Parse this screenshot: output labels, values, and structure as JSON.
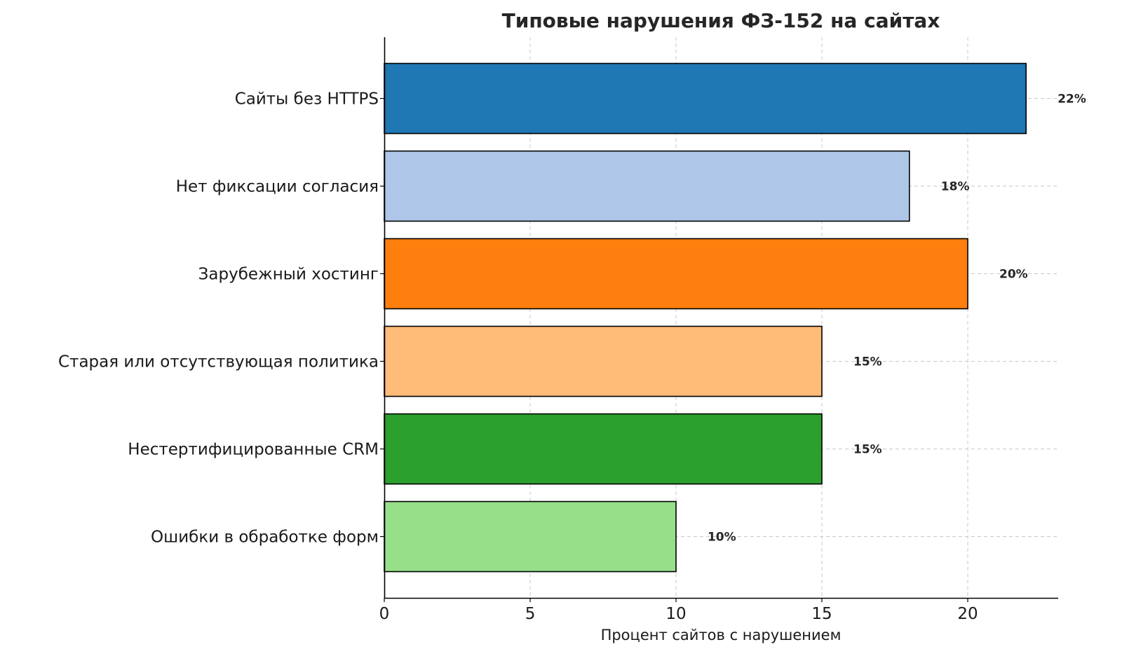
{
  "chart_data": {
    "type": "bar",
    "orientation": "horizontal",
    "title": "Типовые нарушения ФЗ-152 на сайтах",
    "xlabel": "Процент сайтов с нарушением",
    "ylabel": "",
    "categories": [
      "Сайты без HTTPS",
      "Нет фиксации согласия",
      "Зарубежный хостинг",
      "Старая или отсутствующая политика",
      "Нестертифицированные CRM",
      "Ошибки в обработке форм"
    ],
    "values": [
      22,
      18,
      20,
      15,
      15,
      10
    ],
    "data_labels": [
      "22%",
      "18%",
      "20%",
      "15%",
      "15%",
      "10%"
    ],
    "colors": [
      "#1f77b4",
      "#aec7e8",
      "#ff7f0e",
      "#ffbb78",
      "#2ca02c",
      "#98df8a"
    ],
    "xlim": [
      0,
      23.1
    ],
    "xticks": [
      0,
      5,
      10,
      15,
      20
    ],
    "xtick_labels": [
      "0",
      "5",
      "10",
      "15",
      "20"
    ],
    "grid": true,
    "grid_style": "dashed"
  }
}
